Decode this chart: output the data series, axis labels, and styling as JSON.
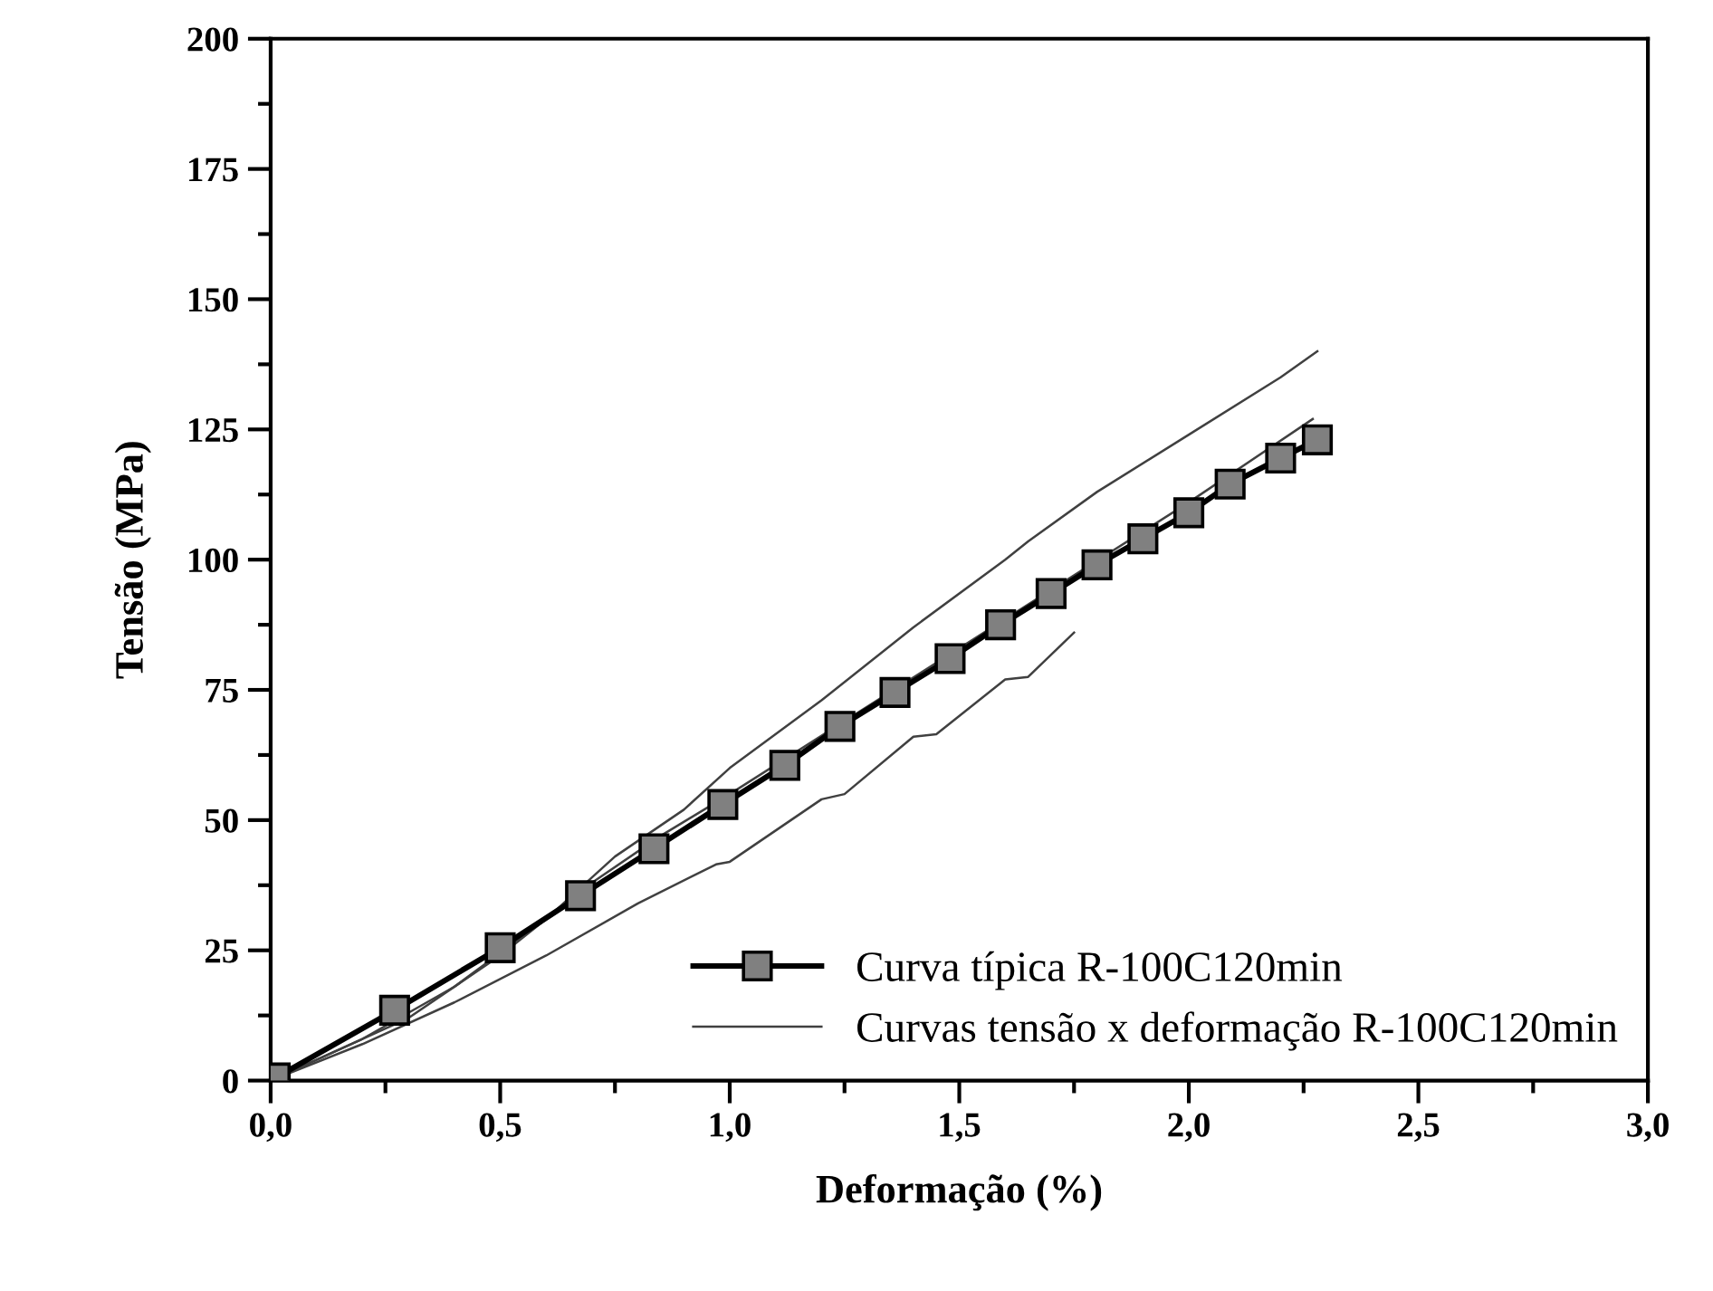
{
  "chart_data": {
    "type": "line",
    "xlabel": "Deformação (%)",
    "ylabel": "Tensão (MPa)",
    "xlim": [
      0,
      3.0
    ],
    "xticks": [
      {
        "value": 0,
        "label": "0,0"
      },
      {
        "value": 0.5,
        "label": "0,5"
      },
      {
        "value": 1.0,
        "label": "1,0"
      },
      {
        "value": 1.5,
        "label": "1,5"
      },
      {
        "value": 2.0,
        "label": "2,0"
      },
      {
        "value": 2.5,
        "label": "2,5"
      },
      {
        "value": 3.0,
        "label": "3,0"
      }
    ],
    "ylim": [
      0,
      200
    ],
    "yticks": [
      0,
      25,
      50,
      75,
      100,
      125,
      150,
      175,
      200
    ],
    "grid": false,
    "legend": "bottom right",
    "series": [
      {
        "name": "Curva típica R-100C120min",
        "color": "#000000",
        "marker": "square",
        "x": [
          0.01,
          0.27,
          0.5,
          0.675,
          0.835,
          0.985,
          1.12,
          1.24,
          1.36,
          1.48,
          1.59,
          1.7,
          1.8,
          1.9,
          2.0,
          2.09,
          2.2,
          2.28
        ],
        "values": [
          0.5,
          13.5,
          25.5,
          35.5,
          44.5,
          53,
          60.5,
          68,
          74.5,
          81,
          87.5,
          93.5,
          99,
          104,
          109,
          114.5,
          119.5,
          123
        ]
      },
      {
        "name": "Curvas tensão x deformação R-100C120min",
        "color": "#404040",
        "x": [
          0,
          0.2,
          0.4,
          0.6,
          0.75,
          0.9,
          1.0,
          1.2,
          1.4,
          1.6,
          1.65,
          1.8,
          2.0,
          2.2,
          2.28
        ],
        "values": [
          0,
          8,
          18,
          31,
          43,
          52,
          60,
          73,
          87,
          100,
          103.5,
          113,
          124,
          135,
          140
        ]
      },
      {
        "color": "#404040",
        "x": [
          0,
          0.3,
          0.5,
          0.7,
          0.85,
          1.0,
          1.5,
          2.0,
          2.27
        ],
        "values": [
          0,
          12,
          24,
          38,
          47,
          55,
          83,
          111,
          127
        ]
      },
      {
        "color": "#404040",
        "x": [
          0,
          0.2,
          0.4,
          0.6,
          0.8,
          0.97,
          1.0,
          1.2,
          1.25,
          1.4,
          1.45,
          1.6,
          1.65,
          1.75
        ],
        "values": [
          0,
          7,
          15,
          24,
          34,
          41.5,
          42,
          54,
          55,
          66,
          66.5,
          77,
          77.5,
          86
        ]
      }
    ]
  }
}
